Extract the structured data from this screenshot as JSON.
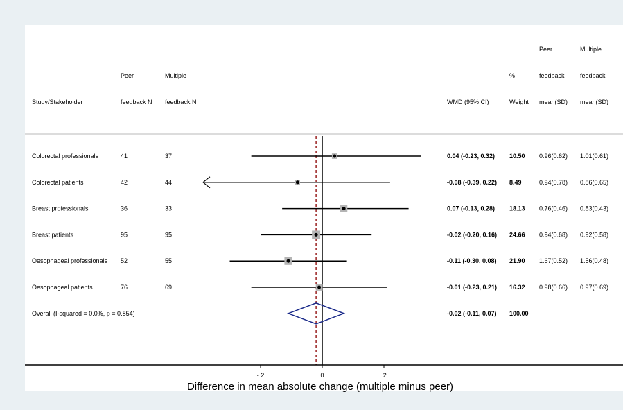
{
  "chart_data": {
    "type": "forest",
    "columns": {
      "study": [
        "",
        "",
        "Study/Stakeholder"
      ],
      "peer_n": [
        "",
        "Peer",
        "feedback N"
      ],
      "multiple_n": [
        "",
        "Multiple",
        "feedback N"
      ],
      "wmd": [
        "",
        "",
        "WMD (95% CI)"
      ],
      "weight": [
        "",
        "%",
        "Weight"
      ],
      "peer_mean": [
        "Peer",
        "feedback",
        "mean(SD)"
      ],
      "multiple_mean": [
        "Multiple",
        "feedback",
        "mean(SD)"
      ]
    },
    "rows": [
      {
        "label": "Colorectal professionals",
        "peer_n": "41",
        "multiple_n": "37",
        "wmd": 0.04,
        "lower": -0.23,
        "upper": 0.32,
        "wmd_text": "0.04 (-0.23, 0.32)",
        "weight": 10.5,
        "weight_text": "10.50",
        "peer_mean": "0.96(0.62)",
        "multiple_mean": "1.01(0.61)",
        "arrow_left": false
      },
      {
        "label": "Colorectal patients",
        "peer_n": "42",
        "multiple_n": "44",
        "wmd": -0.08,
        "lower": -0.39,
        "upper": 0.22,
        "wmd_text": "-0.08 (-0.39, 0.22)",
        "weight": 8.49,
        "weight_text": "8.49",
        "peer_mean": "0.94(0.78)",
        "multiple_mean": "0.86(0.65)",
        "arrow_left": true
      },
      {
        "label": "Breast professionals",
        "peer_n": "36",
        "multiple_n": "33",
        "wmd": 0.07,
        "lower": -0.13,
        "upper": 0.28,
        "wmd_text": "0.07 (-0.13, 0.28)",
        "weight": 18.13,
        "weight_text": "18.13",
        "peer_mean": "0.76(0.46)",
        "multiple_mean": "0.83(0.43)",
        "arrow_left": false
      },
      {
        "label": "Breast patients",
        "peer_n": "95",
        "multiple_n": "95",
        "wmd": -0.02,
        "lower": -0.2,
        "upper": 0.16,
        "wmd_text": "-0.02 (-0.20, 0.16)",
        "weight": 24.66,
        "weight_text": "24.66",
        "peer_mean": "0.94(0.68)",
        "multiple_mean": "0.92(0.58)",
        "arrow_left": false
      },
      {
        "label": "Oesophageal professionals",
        "peer_n": "52",
        "multiple_n": "55",
        "wmd": -0.11,
        "lower": -0.3,
        "upper": 0.08,
        "wmd_text": "-0.11 (-0.30, 0.08)",
        "weight": 21.9,
        "weight_text": "21.90",
        "peer_mean": "1.67(0.52)",
        "multiple_mean": "1.56(0.48)",
        "arrow_left": false
      },
      {
        "label": "Oesophageal patients",
        "peer_n": "76",
        "multiple_n": "69",
        "wmd": -0.01,
        "lower": -0.23,
        "upper": 0.21,
        "wmd_text": "-0.01 (-0.23, 0.21)",
        "weight": 16.32,
        "weight_text": "16.32",
        "peer_mean": "0.98(0.66)",
        "multiple_mean": "0.97(0.69)",
        "arrow_left": false
      }
    ],
    "overall": {
      "label": "Overall  (I-squared = 0.0%, p = 0.854)",
      "wmd": -0.02,
      "lower": -0.11,
      "upper": 0.07,
      "wmd_text": "-0.02 (-0.11, 0.07)",
      "weight_text": "100.00"
    },
    "x_ticks": [
      {
        "value": -0.2,
        "label": "-.2"
      },
      {
        "value": 0,
        "label": "0"
      },
      {
        "value": 0.2,
        "label": ".2"
      }
    ],
    "null_line": 0,
    "xlabel": "Difference in mean absolute change (multiple minus peer)",
    "colors": {
      "background": "#eaf0f3",
      "plot_background": "#ffffff",
      "ci_line": "#000000",
      "weight_box": "#b4b4b4",
      "overall_line": "#8b0000",
      "diamond": "#1a2a8a",
      "separator": "#b8b8b8"
    }
  }
}
